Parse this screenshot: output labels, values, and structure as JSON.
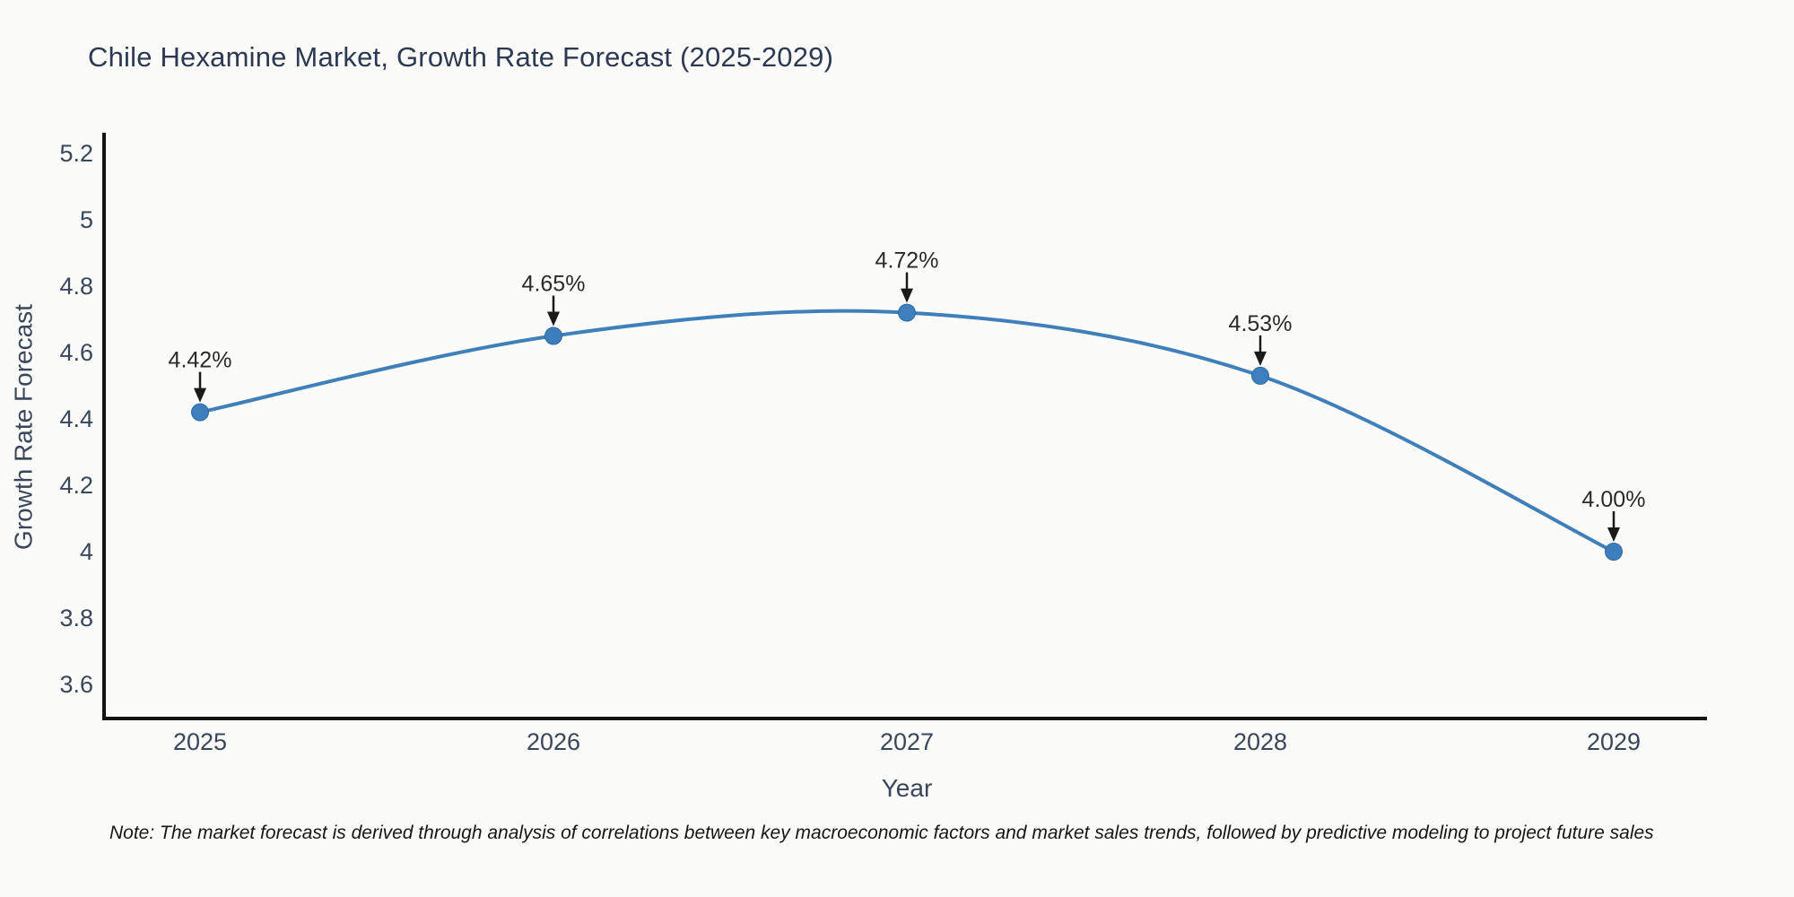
{
  "title": "Chile Hexamine Market, Growth Rate Forecast (2025-2029)",
  "note": "Note: The market forecast is derived through analysis of correlations between key macroeconomic factors and market sales trends, followed by predictive modeling to project future sales",
  "chart_data": {
    "type": "line",
    "title": "Chile Hexamine Market, Growth Rate Forecast (2025-2029)",
    "xlabel": "Year",
    "ylabel": "Growth Rate Forecast",
    "categories": [
      "2025",
      "2026",
      "2027",
      "2028",
      "2029"
    ],
    "x": [
      2025,
      2026,
      2027,
      2028,
      2029
    ],
    "values": [
      4.42,
      4.65,
      4.72,
      4.53,
      4.0
    ],
    "point_labels": [
      "4.42%",
      "4.65%",
      "4.72%",
      "4.53%",
      "4.00%"
    ],
    "yticks": [
      3.6,
      3.8,
      4,
      4.2,
      4.4,
      4.6,
      4.8,
      5,
      5.2
    ],
    "ytick_labels": [
      "3.6",
      "3.8",
      "4",
      "4.2",
      "4.4",
      "4.6",
      "4.8",
      "5",
      "5.2"
    ],
    "ylim": [
      3.49,
      5.26
    ],
    "xlim": [
      2024.73,
      2029.27
    ],
    "grid": false,
    "legend": false,
    "smooth_spline": true,
    "annotation_style": "label-above-with-down-arrow"
  },
  "colors": {
    "line": "#3f7fba",
    "marker": "#3d7ebd",
    "marker_edge": "#2f6ba6",
    "axis_line": "#141414",
    "tick_text": "#3a4659",
    "title_text": "#2c3951",
    "annotation_text": "#2a2a2a",
    "annotation_arrow": "#1a1a1a",
    "background": "#fbfbf9"
  }
}
